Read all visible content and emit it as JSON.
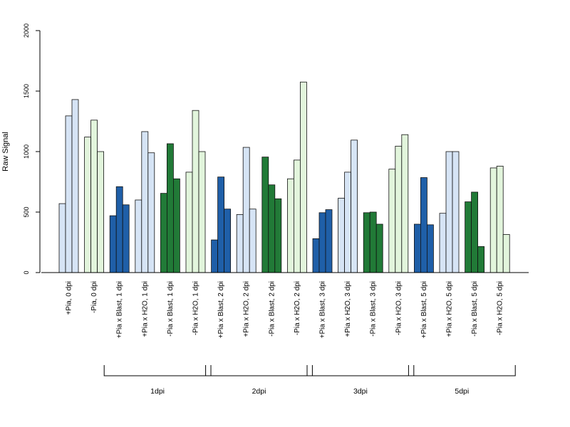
{
  "chart_data": {
    "type": "bar",
    "ylabel": "Raw Signal",
    "ylim": [
      0,
      2000
    ],
    "yticks": [
      0,
      500,
      1000,
      1500,
      2000
    ],
    "grid": false,
    "categories": [
      "+Pia, 0 dpi",
      "-Pia, 0 dpi",
      "+Pia x Blast, 1 dpi",
      "+Pia x H2O, 1 dpi",
      "-Pia x Blast, 1 dpi",
      "-Pia x H2O, 1 dpi",
      "+Pia x Blast, 2 dpi",
      "+Pia x H2O, 2 dpi",
      "-Pia x Blast, 2 dpi",
      "-Pia x H2O, 2 dpi",
      "+Pia x Blast, 3 dpi",
      "+Pia x H2O, 3 dpi",
      "-Pia x Blast, 3 dpi",
      "-Pia x H2O, 3 dpi",
      "+Pia x Blast, 5 dpi",
      "+Pia x H2O, 5 dpi",
      "-Pia x Blast, 5 dpi",
      "-Pia x H2O, 5 dpi"
    ],
    "colors": [
      "#d6e4f5",
      "#e2f5dc",
      "#1f5fa8",
      "#d6e4f5",
      "#217a37",
      "#e2f5dc",
      "#1f5fa8",
      "#d6e4f5",
      "#217a37",
      "#e2f5dc",
      "#1f5fa8",
      "#d6e4f5",
      "#217a37",
      "#e2f5dc",
      "#1f5fa8",
      "#d6e4f5",
      "#217a37",
      "#e2f5dc"
    ],
    "values": [
      [
        570,
        1295,
        1430
      ],
      [
        1120,
        1260,
        1000
      ],
      [
        470,
        710,
        560
      ],
      [
        600,
        1165,
        990
      ],
      [
        655,
        1065,
        775
      ],
      [
        830,
        1340,
        1000
      ],
      [
        270,
        790,
        525
      ],
      [
        480,
        1035,
        525
      ],
      [
        955,
        725,
        610
      ],
      [
        775,
        930,
        1575
      ],
      [
        280,
        495,
        520
      ],
      [
        615,
        830,
        1095
      ],
      [
        495,
        500,
        400
      ],
      [
        855,
        1045,
        1140
      ],
      [
        400,
        785,
        395
      ],
      [
        490,
        1000,
        1000
      ],
      [
        585,
        665,
        215
      ],
      [
        865,
        880,
        315
      ]
    ],
    "groups": [
      {
        "label": "1dpi",
        "start": 2,
        "end": 5
      },
      {
        "label": "2dpi",
        "start": 6,
        "end": 9
      },
      {
        "label": "3dpi",
        "start": 10,
        "end": 13
      },
      {
        "label": "5dpi",
        "start": 14,
        "end": 17
      }
    ]
  }
}
